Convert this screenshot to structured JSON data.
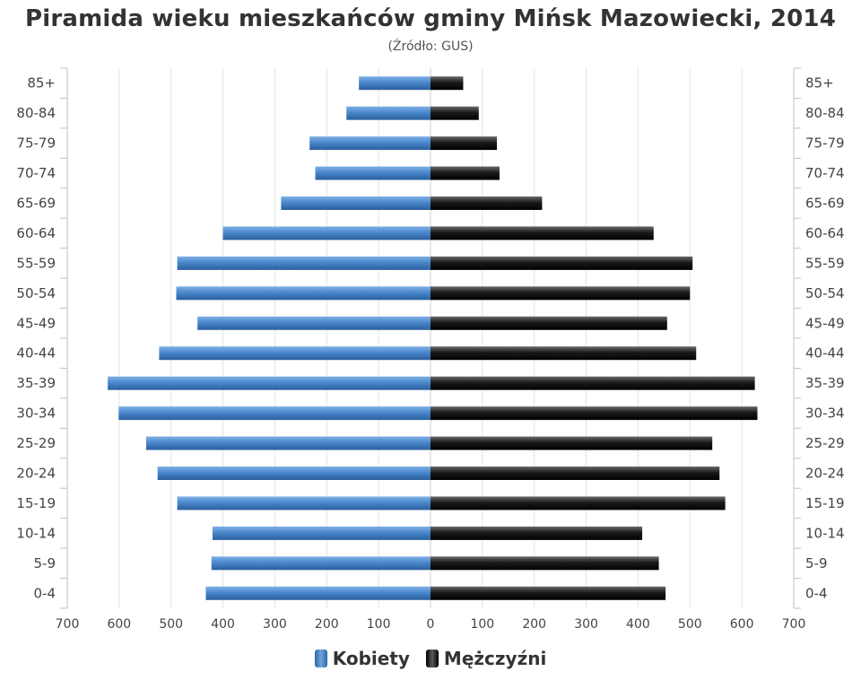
{
  "chart_data": {
    "type": "bar",
    "title": "Piramida wieku mieszkańców gminy Mińsk Mazowiecki, 2014",
    "subtitle": "(Źródło: GUS)",
    "categories": [
      "85+",
      "80-84",
      "75-79",
      "70-74",
      "65-69",
      "60-64",
      "55-59",
      "50-54",
      "45-49",
      "40-44",
      "35-39",
      "30-34",
      "25-29",
      "20-24",
      "15-19",
      "10-14",
      "5-9",
      "0-4"
    ],
    "series": [
      {
        "name": "Kobiety",
        "values": [
          138,
          162,
          233,
          222,
          288,
          400,
          488,
          490,
          449,
          523,
          622,
          601,
          548,
          526,
          488,
          420,
          422,
          433
        ]
      },
      {
        "name": "Mężczyźni",
        "values": [
          63,
          93,
          128,
          133,
          215,
          430,
          505,
          500,
          456,
          512,
          625,
          630,
          543,
          557,
          568,
          408,
          440,
          453
        ]
      }
    ],
    "xlim": [
      -700,
      700
    ],
    "x_ticks": [
      700,
      600,
      500,
      400,
      300,
      200,
      100,
      0,
      100,
      200,
      300,
      400,
      500,
      600,
      700
    ],
    "grid": true,
    "legend_position": "bottom-center",
    "colors": {
      "Kobiety": "#3b79be",
      "Mężczyźni": "#111111"
    }
  }
}
